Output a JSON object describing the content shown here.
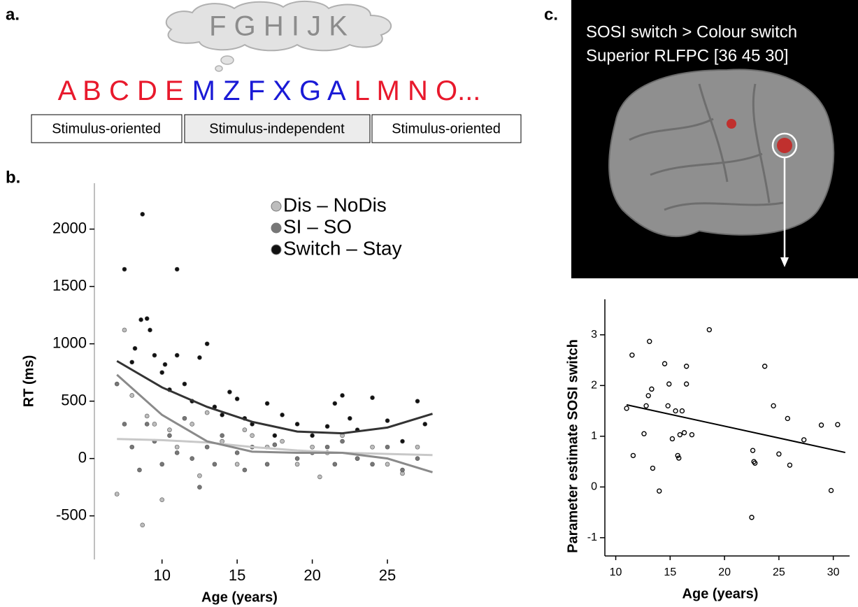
{
  "panel_labels": [
    "a.",
    "b.",
    "c."
  ],
  "panel_a": {
    "thought": "F G H I J K",
    "letters": [
      {
        "text": "A B C D E",
        "color": "#e8192c"
      },
      {
        "text": "M Z F X G A",
        "color": "#1a1ad6"
      },
      {
        "text": "L M N O...",
        "color": "#e8192c"
      }
    ],
    "boxes": [
      "Stimulus-oriented",
      "Stimulus-independent",
      "Stimulus-oriented"
    ]
  },
  "panel_c_image": {
    "lines": [
      "SOSI switch > Colour switch",
      "Superior RLFPC [36 45 30]"
    ]
  },
  "chart_data": [
    {
      "type": "scatter",
      "xlabel": "Age (years)",
      "ylabel": "RT (ms)",
      "xlim": [
        5.5,
        29
      ],
      "xticks": [
        10,
        15,
        20,
        25
      ],
      "ylim": [
        -880,
        2400
      ],
      "yticks": [
        -500,
        0,
        500,
        1000,
        1500,
        2000
      ],
      "legend": "top",
      "series": [
        {
          "name": "Dis – NoDis",
          "color": "#bdbdbd",
          "x": [
            7,
            7.5,
            8,
            8.7,
            9,
            9.5,
            10,
            10.5,
            11,
            12,
            12.5,
            13,
            14,
            15,
            15.5,
            16,
            17,
            18,
            19,
            20,
            20.5,
            21,
            22,
            23,
            24,
            25,
            26,
            27
          ],
          "values": [
            -310,
            1120,
            550,
            -580,
            370,
            300,
            -360,
            250,
            100,
            300,
            -150,
            400,
            150,
            -50,
            250,
            200,
            100,
            150,
            -50,
            100,
            -160,
            50,
            200,
            0,
            100,
            -50,
            -130,
            100
          ]
        },
        {
          "name": "SI – SO",
          "color": "#777777",
          "x": [
            7,
            7.5,
            8,
            8.5,
            9,
            9.5,
            10,
            10.5,
            11,
            11.5,
            12,
            12.5,
            13,
            13.5,
            14,
            15,
            15.5,
            16,
            17,
            17.5,
            19,
            20,
            21,
            21.5,
            22,
            23,
            24,
            25,
            26,
            27
          ],
          "values": [
            650,
            300,
            100,
            -100,
            300,
            150,
            -50,
            200,
            50,
            350,
            0,
            -250,
            100,
            -50,
            200,
            50,
            -100,
            100,
            -50,
            120,
            0,
            50,
            100,
            -50,
            150,
            0,
            -50,
            100,
            -100,
            0
          ]
        },
        {
          "name": "Switch – Stay",
          "color": "#111111",
          "x": [
            7.5,
            8.7,
            11,
            8,
            8.2,
            8.6,
            9,
            9.2,
            9.5,
            10,
            10.2,
            10.5,
            11,
            11.5,
            12,
            12.5,
            13,
            13.5,
            14,
            14.5,
            15,
            15.5,
            16,
            17,
            17.5,
            18,
            19,
            20,
            21,
            21.5,
            22,
            22.5,
            23,
            24,
            25,
            26,
            27,
            27.5
          ],
          "values": [
            1650,
            2130,
            1650,
            840,
            960,
            1210,
            1220,
            1120,
            900,
            750,
            820,
            600,
            900,
            650,
            500,
            880,
            1000,
            450,
            380,
            580,
            520,
            350,
            300,
            480,
            200,
            380,
            300,
            200,
            280,
            480,
            550,
            350,
            250,
            530,
            330,
            150,
            500,
            300
          ]
        }
      ],
      "curves": [
        {
          "color": "#c8c8c8",
          "x": [
            7,
            10,
            13,
            16,
            19,
            22,
            25,
            28
          ],
          "values": [
            170,
            160,
            140,
            100,
            70,
            50,
            40,
            30
          ]
        },
        {
          "color": "#8a8a8a",
          "x": [
            7,
            10,
            13,
            16,
            19,
            22,
            25,
            28
          ],
          "values": [
            730,
            380,
            150,
            60,
            50,
            50,
            0,
            -120
          ]
        },
        {
          "color": "#333333",
          "x": [
            7,
            10,
            13,
            16,
            19,
            22,
            25,
            28
          ],
          "values": [
            850,
            620,
            450,
            320,
            235,
            220,
            270,
            390
          ]
        }
      ]
    },
    {
      "type": "scatter",
      "xlabel": "Age (years)",
      "ylabel": "Parameter estimate SOSI switch",
      "xlim": [
        9,
        31.5
      ],
      "xticks": [
        10,
        15,
        20,
        25,
        30
      ],
      "ylim": [
        -1.36,
        3.7
      ],
      "yticks": [
        -1,
        0,
        1,
        2,
        3
      ],
      "marker_fill": "none",
      "series": [
        {
          "color": "#000000",
          "x": [
            11,
            11.5,
            11.6,
            12.6,
            12.8,
            13,
            13.1,
            13.3,
            13.4,
            14,
            14.5,
            14.8,
            14.9,
            15.2,
            15.5,
            15.7,
            15.8,
            15.9,
            16.1,
            16.3,
            16.5,
            16.5,
            17,
            18.6,
            22.5,
            22.6,
            22.7,
            22.8,
            23.7,
            24.5,
            25,
            25.8,
            26,
            27.3,
            28.9,
            29.8,
            30.4
          ],
          "values": [
            1.55,
            2.6,
            0.62,
            1.05,
            1.6,
            1.8,
            2.87,
            1.93,
            0.37,
            -0.08,
            2.43,
            1.6,
            2.03,
            0.95,
            1.5,
            0.62,
            0.57,
            1.03,
            1.5,
            1.07,
            2.38,
            2.03,
            1.03,
            3.1,
            -0.6,
            0.72,
            0.5,
            0.47,
            2.38,
            1.6,
            0.65,
            1.35,
            0.43,
            0.93,
            1.22,
            -0.07,
            1.23
          ]
        }
      ],
      "curves": [
        {
          "color": "#000000",
          "x": [
            11,
            31.1
          ],
          "values": [
            1.62,
            0.68
          ]
        }
      ]
    }
  ]
}
